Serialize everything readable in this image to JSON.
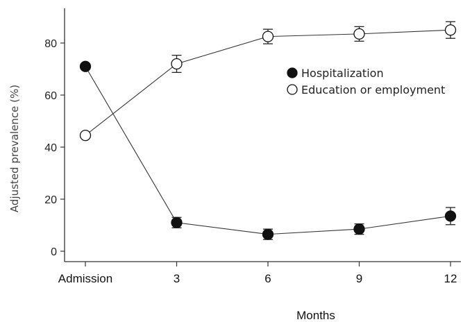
{
  "chart_data": {
    "type": "line",
    "title": "",
    "xlabel": "Months",
    "ylabel": "Adjusted prevalence (%)",
    "categories": [
      "Admission",
      "3",
      "6",
      "9",
      "12"
    ],
    "ylim": [
      -3,
      95
    ],
    "yticks": [
      0,
      20,
      40,
      60,
      80
    ],
    "grid": false,
    "legend_position": "right",
    "series": [
      {
        "name": "Hospitalization",
        "marker": "filled-circle",
        "color": "#111111",
        "values": [
          71,
          11,
          6.5,
          8.5,
          13.5
        ],
        "errors": [
          null,
          2,
          2,
          2,
          3.3
        ]
      },
      {
        "name": "Education or employment",
        "marker": "open-circle",
        "color": "#111111",
        "values": [
          44.5,
          72,
          82.5,
          83.5,
          85
        ],
        "errors": [
          null,
          3.3,
          2.8,
          2.8,
          3.2
        ]
      }
    ]
  }
}
